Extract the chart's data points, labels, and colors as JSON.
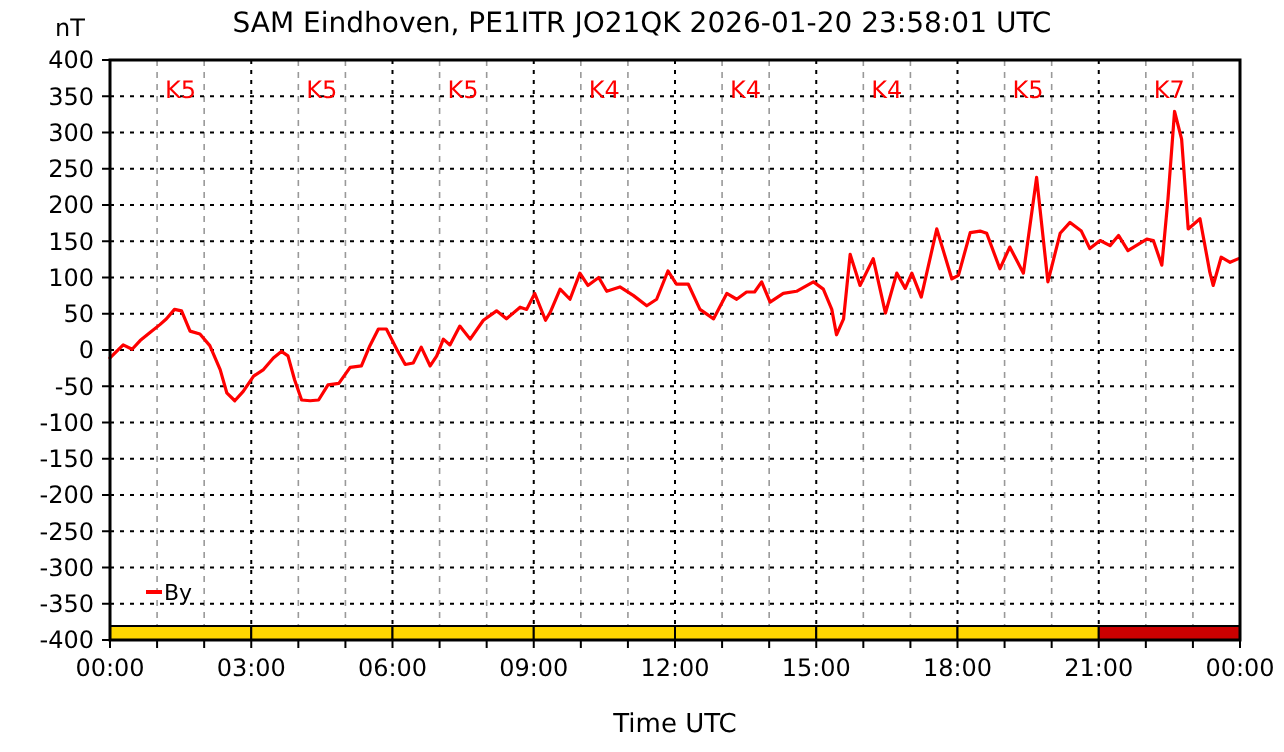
{
  "chart_data": {
    "type": "line",
    "title": "SAM Eindhoven, PE1ITR JO21QK 2026-01-20 23:58:01 UTC",
    "xlabel": "Time UTC",
    "ylabel": "nT",
    "x": [
      0,
      0.28,
      0.47,
      0.64,
      0.85,
      1.06,
      1.2,
      1.37,
      1.52,
      1.7,
      1.91,
      2.12,
      2.34,
      2.48,
      2.65,
      2.83,
      3.05,
      3.26,
      3.47,
      3.64,
      3.78,
      3.92,
      4.07,
      4.25,
      4.43,
      4.63,
      4.86,
      5.1,
      5.34,
      5.52,
      5.7,
      5.87,
      6.09,
      6.27,
      6.44,
      6.61,
      6.8,
      6.94,
      7.08,
      7.22,
      7.43,
      7.65,
      7.93,
      8.21,
      8.42,
      8.71,
      8.85,
      9.02,
      9.25,
      9.35,
      9.56,
      9.77,
      9.98,
      10.15,
      10.38,
      10.55,
      10.83,
      11.12,
      11.4,
      11.61,
      11.85,
      12.03,
      12.28,
      12.53,
      12.82,
      13.1,
      13.31,
      13.52,
      13.69,
      13.84,
      14.02,
      14.3,
      14.58,
      14.94,
      15.15,
      15.33,
      15.43,
      15.58,
      15.72,
      15.93,
      16.21,
      16.47,
      16.71,
      16.89,
      17.03,
      17.23,
      17.56,
      17.88,
      18.02,
      18.27,
      18.48,
      18.62,
      18.9,
      19.11,
      19.4,
      19.68,
      19.92,
      20.18,
      20.39,
      20.63,
      20.81,
      21.03,
      21.24,
      21.42,
      21.62,
      22.02,
      22.16,
      22.34,
      22.47,
      22.61,
      22.76,
      22.9,
      23.15,
      23.36,
      23.43,
      23.6,
      23.79,
      23.97
    ],
    "series": [
      {
        "name": "By",
        "color": "#ff0000",
        "values": [
          -11,
          7,
          1,
          13,
          24,
          35,
          43,
          56,
          54,
          26,
          22,
          6,
          -27,
          -59,
          -70,
          -57,
          -36,
          -27,
          -11,
          -2,
          -8,
          -41,
          -69,
          -70,
          -69,
          -48,
          -46,
          -24,
          -22,
          6,
          29,
          29,
          1,
          -20,
          -18,
          4,
          -22,
          -8,
          15,
          7,
          33,
          15,
          41,
          54,
          43,
          59,
          56,
          78,
          41,
          52,
          84,
          70,
          106,
          89,
          100,
          81,
          87,
          75,
          61,
          70,
          109,
          91,
          91,
          56,
          43,
          78,
          70,
          80,
          80,
          94,
          66,
          78,
          81,
          94,
          84,
          56,
          21,
          43,
          132,
          89,
          126,
          51,
          106,
          85,
          106,
          73,
          167,
          98,
          103,
          162,
          164,
          161,
          112,
          142,
          106,
          238,
          94,
          161,
          176,
          164,
          140,
          151,
          144,
          158,
          137,
          153,
          151,
          117,
          208,
          329,
          291,
          167,
          181,
          107,
          89,
          128,
          121,
          126
        ]
      }
    ],
    "xlim": [
      0,
      24
    ],
    "xticks": [
      {
        "value": 0,
        "label": "00:00"
      },
      {
        "value": 1,
        "label": null
      },
      {
        "value": 2,
        "label": null
      },
      {
        "value": 3,
        "label": "03:00"
      },
      {
        "value": 4,
        "label": null
      },
      {
        "value": 5,
        "label": null
      },
      {
        "value": 6,
        "label": "06:00"
      },
      {
        "value": 7,
        "label": null
      },
      {
        "value": 8,
        "label": null
      },
      {
        "value": 9,
        "label": "09:00"
      },
      {
        "value": 10,
        "label": null
      },
      {
        "value": 11,
        "label": null
      },
      {
        "value": 12,
        "label": "12:00"
      },
      {
        "value": 13,
        "label": null
      },
      {
        "value": 14,
        "label": null
      },
      {
        "value": 15,
        "label": "15:00"
      },
      {
        "value": 16,
        "label": null
      },
      {
        "value": 17,
        "label": null
      },
      {
        "value": 18,
        "label": "18:00"
      },
      {
        "value": 19,
        "label": null
      },
      {
        "value": 20,
        "label": null
      },
      {
        "value": 21,
        "label": "21:00"
      },
      {
        "value": 22,
        "label": null
      },
      {
        "value": 23,
        "label": null
      },
      {
        "value": 24,
        "label": "00:00"
      }
    ],
    "ylim": [
      -400,
      400
    ],
    "yticks": [
      -400,
      -350,
      -300,
      -250,
      -200,
      -150,
      -100,
      -50,
      0,
      50,
      100,
      150,
      200,
      250,
      300,
      350,
      400
    ],
    "grid": true,
    "legend": "bottom left",
    "line_style": "solid",
    "marker": "none",
    "annotations": [
      "K5",
      "K5",
      "K5",
      "K4",
      "K4",
      "K4",
      "K5",
      "K7"
    ]
  }
}
